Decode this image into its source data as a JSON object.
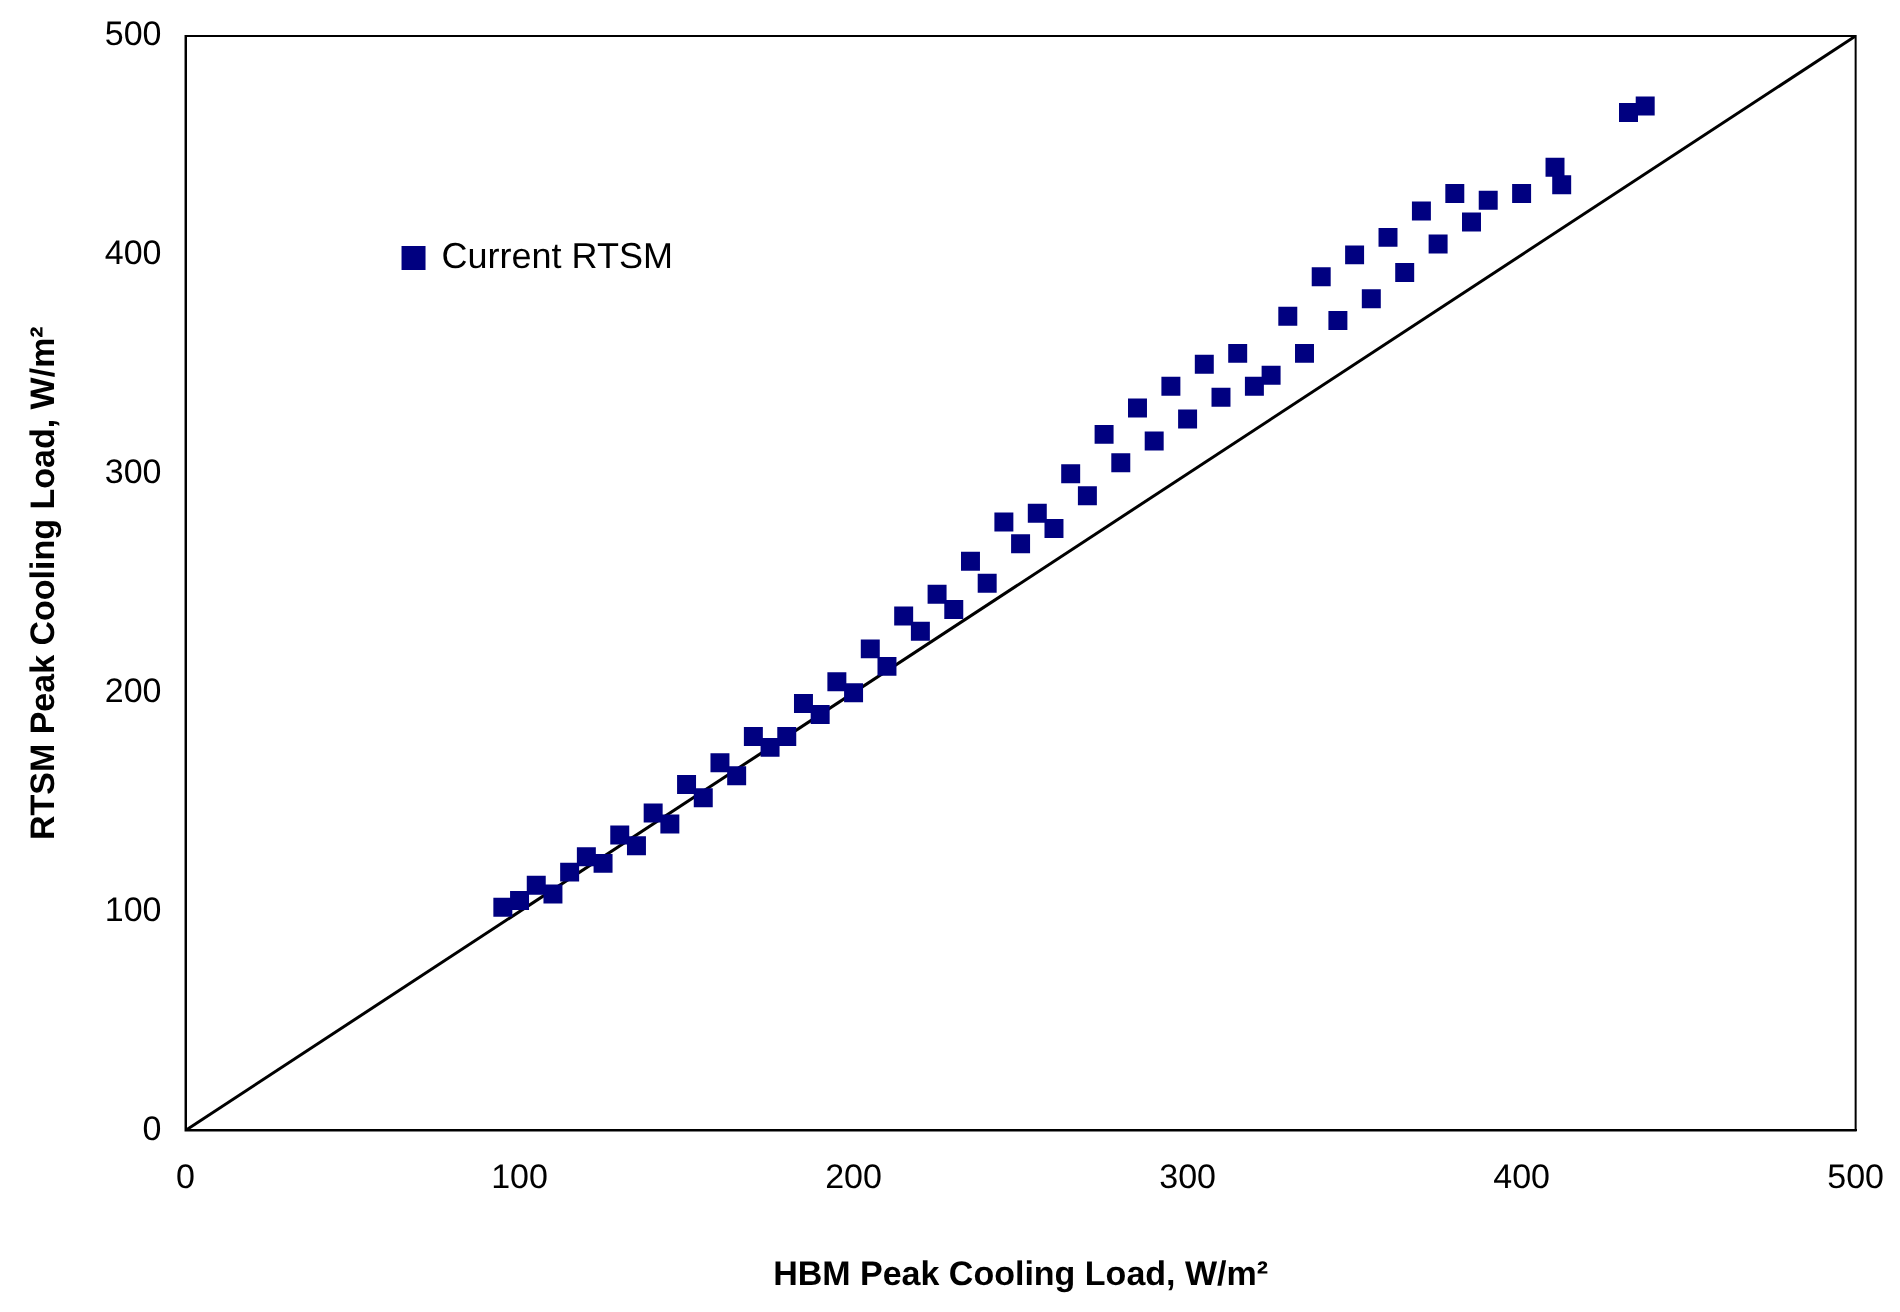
{
  "chart_data": {
    "type": "scatter",
    "xlabel": "HBM Peak Cooling Load, W/m²",
    "ylabel": "RTSM Peak Cooling Load, W/m²",
    "xlim": [
      0,
      500
    ],
    "ylim": [
      0,
      500
    ],
    "xticks": [
      0,
      100,
      200,
      300,
      400,
      500
    ],
    "yticks": [
      0,
      100,
      200,
      300,
      400,
      500
    ],
    "grid": false,
    "legend": "top left",
    "series": [
      {
        "name": "Current RTSM",
        "marker": "square",
        "color": "#000080",
        "x": [
          95,
          100,
          105,
          110,
          115,
          120,
          125,
          130,
          135,
          140,
          145,
          150,
          155,
          160,
          165,
          170,
          175,
          180,
          185,
          190,
          195,
          200,
          205,
          210,
          215,
          220,
          225,
          230,
          235,
          240,
          245,
          250,
          255,
          260,
          265,
          270,
          275,
          280,
          285,
          290,
          295,
          300,
          305,
          310,
          315,
          320,
          325,
          330,
          335,
          340,
          345,
          350,
          355,
          360,
          365,
          370,
          375,
          380,
          385,
          390,
          400,
          410,
          412,
          432,
          437
        ],
        "values": [
          102,
          105,
          112,
          108,
          118,
          125,
          122,
          135,
          130,
          145,
          140,
          158,
          152,
          168,
          162,
          180,
          175,
          180,
          195,
          190,
          205,
          200,
          220,
          212,
          235,
          228,
          245,
          238,
          260,
          250,
          278,
          268,
          282,
          275,
          300,
          290,
          318,
          305,
          330,
          315,
          340,
          325,
          350,
          335,
          355,
          340,
          345,
          372,
          355,
          390,
          370,
          400,
          380,
          408,
          392,
          420,
          405,
          428,
          415,
          425,
          428,
          440,
          432,
          465,
          468
        ]
      },
      {
        "type": "line",
        "marker": "none",
        "color": "#000000",
        "x": [
          0,
          500
        ],
        "values": [
          0,
          500
        ]
      }
    ]
  }
}
